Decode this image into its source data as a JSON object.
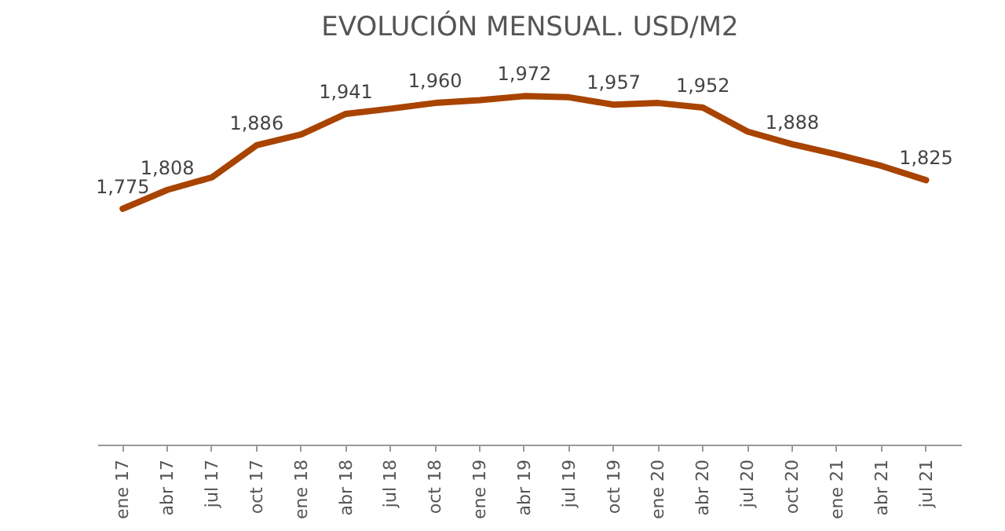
{
  "chart_data": {
    "type": "line",
    "title": "EVOLUCIÓN MENSUAL. USD/M2",
    "categories": [
      "ene 17",
      "abr 17",
      "jul 17",
      "oct 17",
      "ene 18",
      "abr 18",
      "jul 18",
      "oct 18",
      "ene 19",
      "abr 19",
      "jul 19",
      "oct 19",
      "ene 20",
      "abr 20",
      "jul 20",
      "oct 20",
      "ene 21",
      "abr 21",
      "jul 21"
    ],
    "series": [
      {
        "color": "#a84300",
        "values": [
          1775,
          1808,
          1830,
          1886,
          1905,
          1941,
          1950,
          1960,
          1965,
          1972,
          1970,
          1957,
          1960,
          1952,
          1910,
          1888,
          1870,
          1850,
          1825
        ],
        "value_labels": [
          "1,775",
          "1,808",
          null,
          "1,886",
          null,
          "1,941",
          null,
          "1,960",
          null,
          "1,972",
          null,
          "1,957",
          null,
          "1,952",
          null,
          "1,888",
          null,
          null,
          "1,825"
        ]
      }
    ],
    "tick_labels": "x",
    "grid": false,
    "marker": "none",
    "line_style": "solid"
  }
}
